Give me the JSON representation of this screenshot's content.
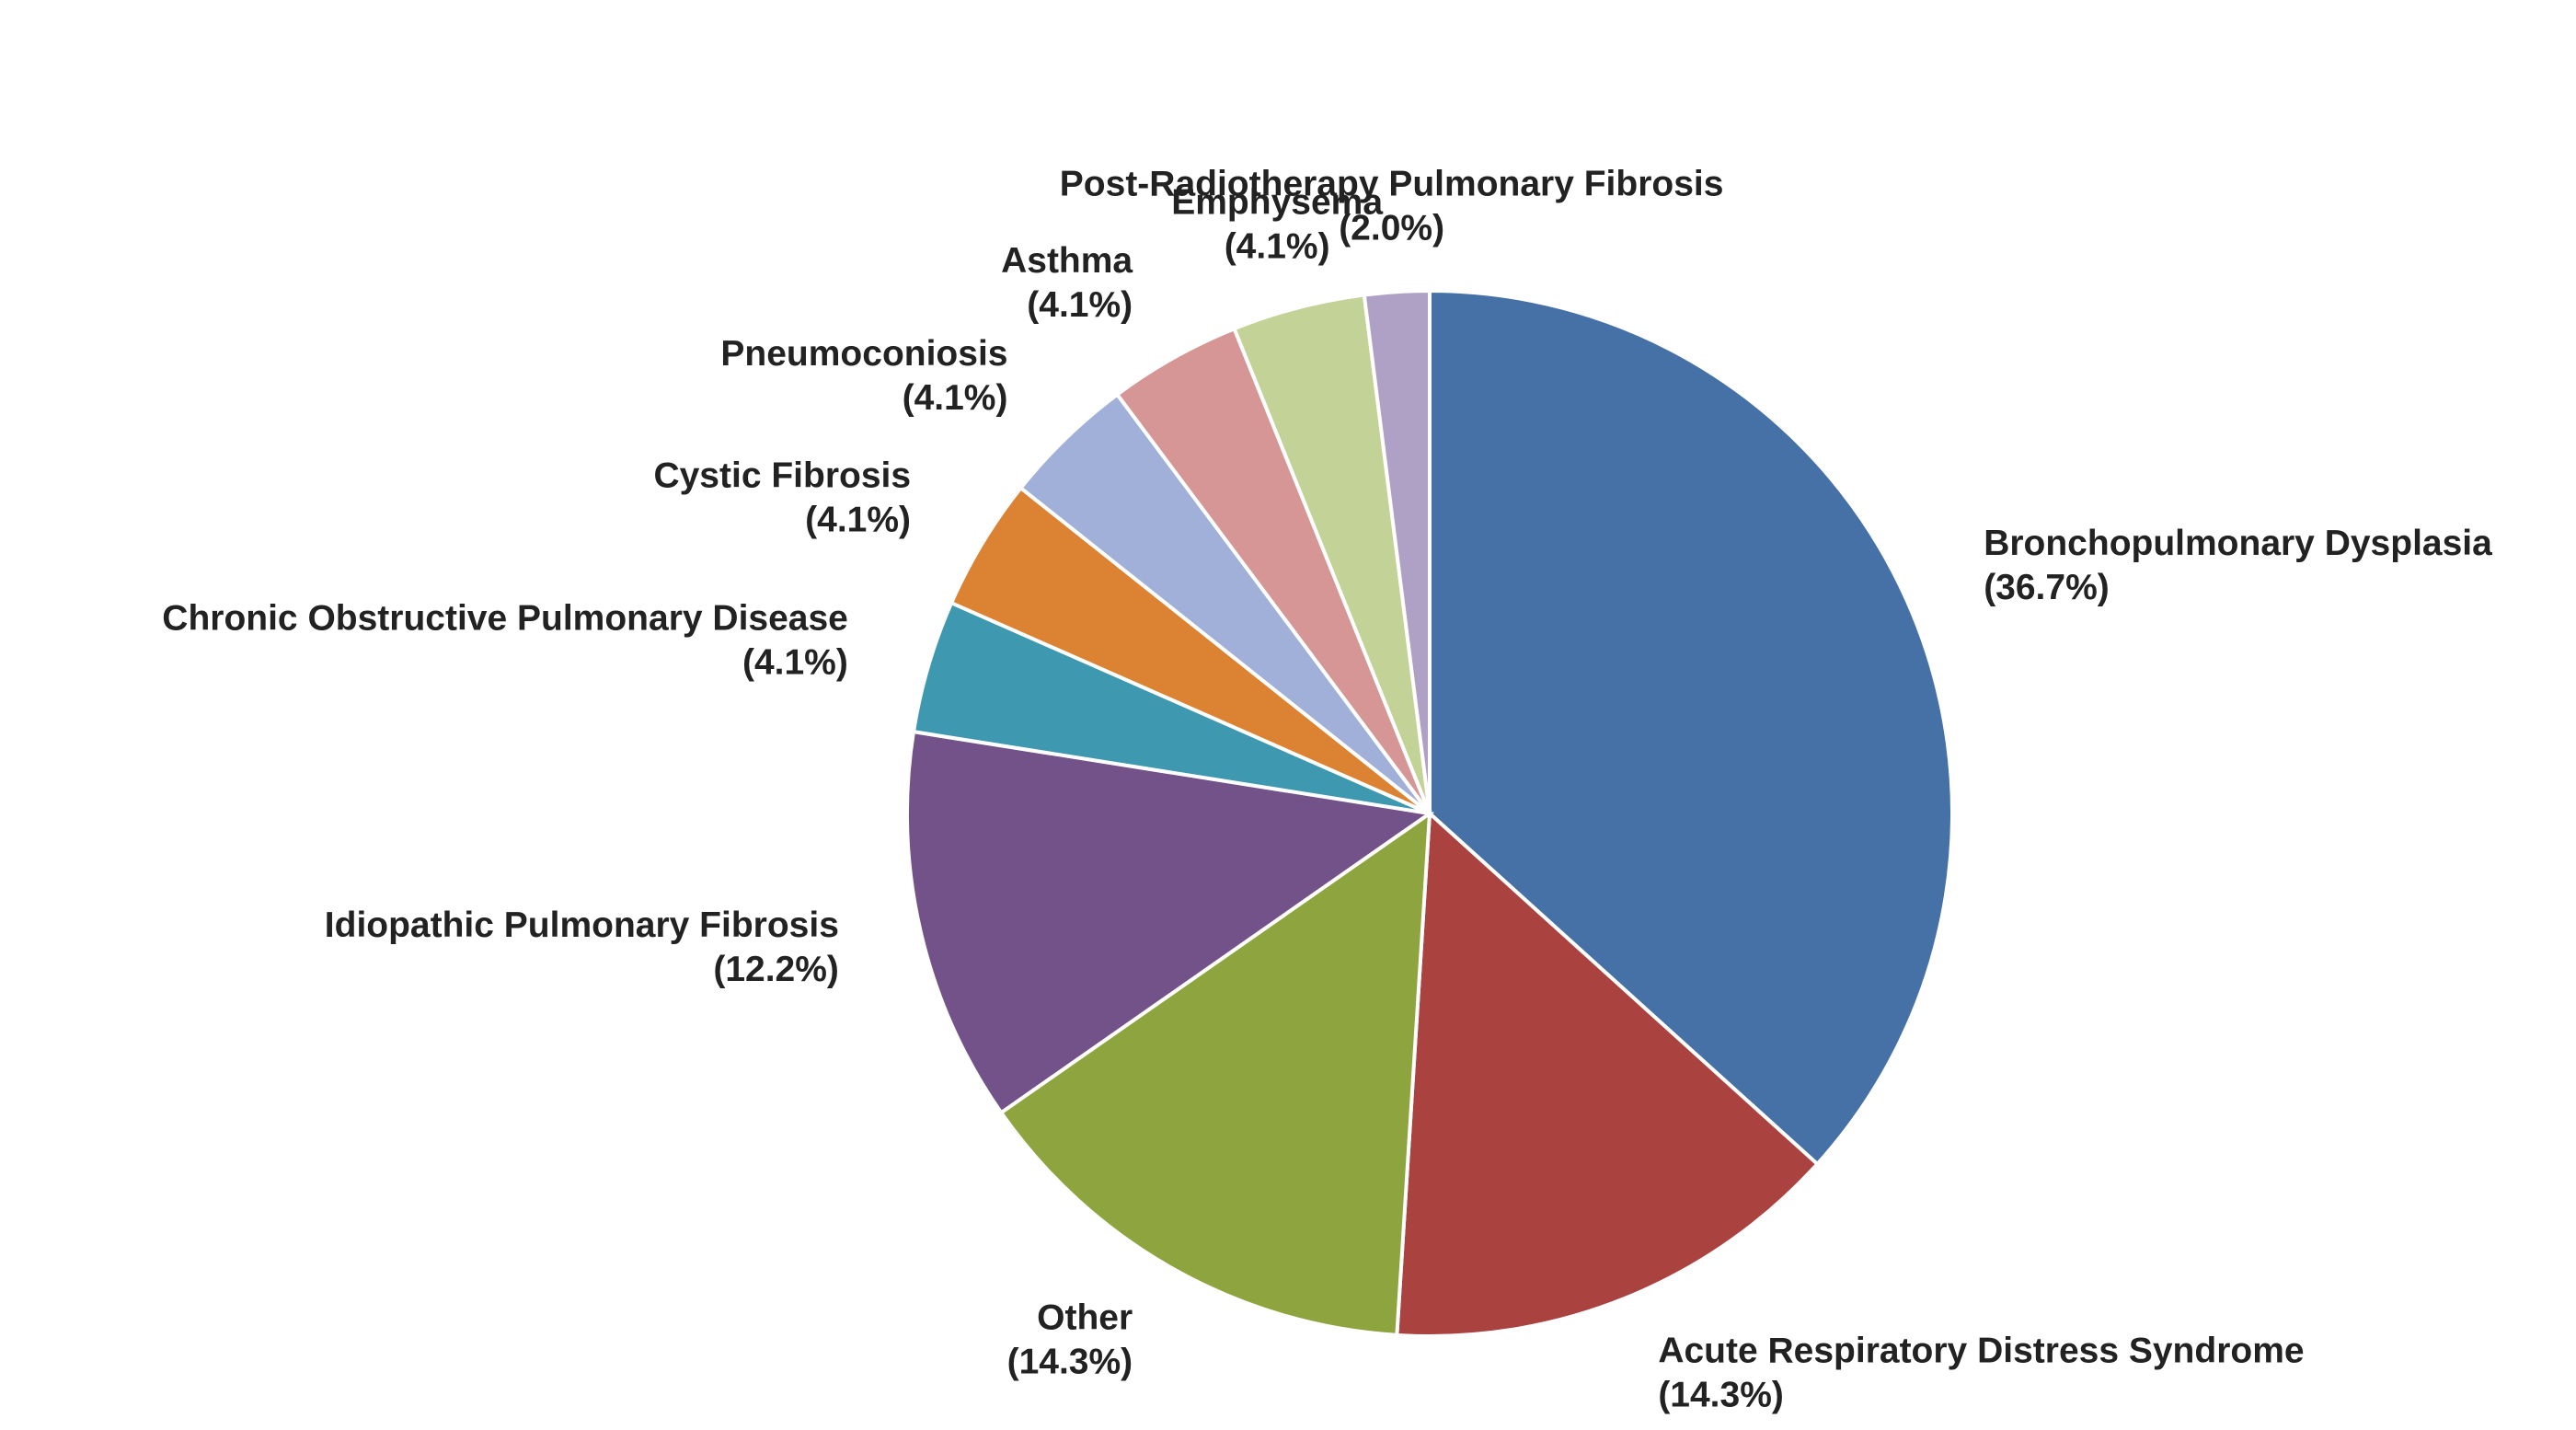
{
  "chart_data": {
    "type": "pie",
    "categories": [
      "Bronchopulmonary Dysplasia",
      "Acute Respiratory Distress Syndrome",
      "Other",
      "Idiopathic Pulmonary Fibrosis",
      "Chronic Obstructive Pulmonary Disease",
      "Cystic Fibrosis",
      "Pneumoconiosis",
      "Asthma",
      "Emphysema",
      "Post-Radiotherapy Pulmonary Fibrosis"
    ],
    "values": [
      36.7,
      14.3,
      14.3,
      12.2,
      4.1,
      4.1,
      4.1,
      4.1,
      4.1,
      2.0
    ],
    "value_labels": [
      "(36.7%)",
      "(14.3%)",
      "(14.3%)",
      "(12.2%)",
      "(4.1%)",
      "(4.1%)",
      "(4.1%)",
      "(4.1%)",
      "(4.1%)",
      "(2.0%)"
    ],
    "colors": [
      "#4571a7",
      "#aa4240",
      "#8ea53f",
      "#735289",
      "#3e98b0",
      "#db8233",
      "#a1b0d9",
      "#d69696",
      "#c3d297",
      "#afa1c6"
    ]
  }
}
